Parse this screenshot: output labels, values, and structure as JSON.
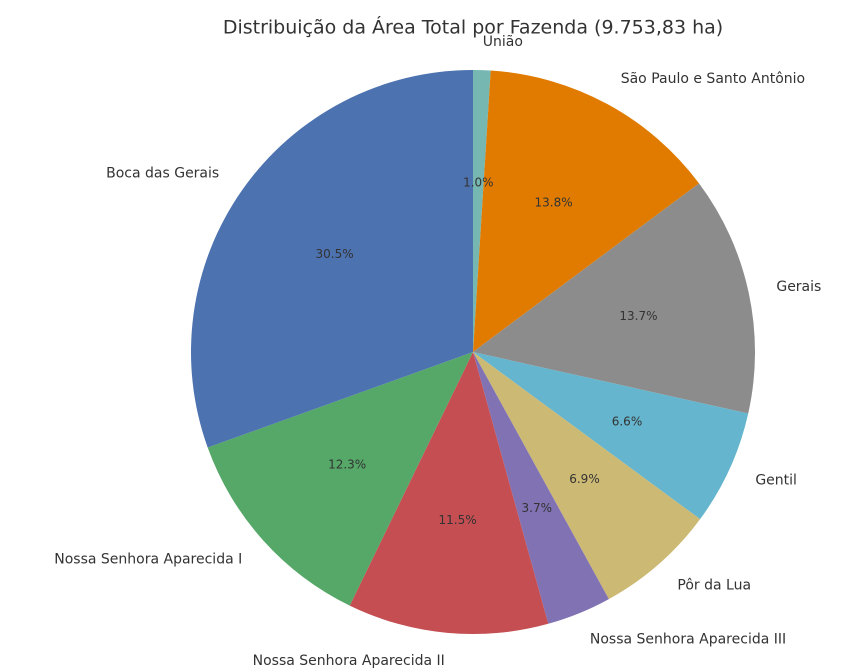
{
  "chart_data": {
    "type": "pie",
    "title": "Distribuição da Área Total por Fazenda (9.753,83 ha)",
    "categories": [
      "União",
      "São Paulo e Santo Antônio",
      "Gerais",
      "Gentil",
      "Pôr da Lua",
      "Nossa Senhora Aparecida III",
      "Nossa Senhora Aparecida II",
      "Nossa Senhora Aparecida I",
      "Boca das Gerais"
    ],
    "values": [
      1.0,
      13.8,
      13.7,
      6.6,
      6.9,
      3.7,
      11.5,
      12.3,
      30.5
    ],
    "value_labels": [
      "1.0%",
      "13.8%",
      "13.7%",
      "6.6%",
      "6.9%",
      "3.7%",
      "11.5%",
      "12.3%",
      "30.5%"
    ],
    "colors": [
      "#76b7b2",
      "#e07b00",
      "#8c8c8c",
      "#64b5cd",
      "#ccb974",
      "#8172b3",
      "#c44e52",
      "#55a868",
      "#4c72b0"
    ],
    "start_angle": 90,
    "clockwise": true
  }
}
